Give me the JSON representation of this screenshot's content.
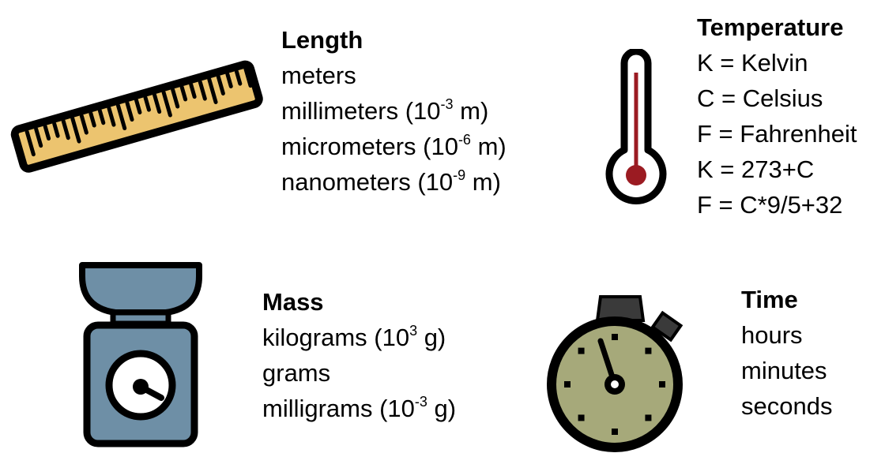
{
  "colors": {
    "outline": "#000000",
    "ruler_fill": "#ecc46f",
    "thermo_bulb": "#9b1b22",
    "scale_fill": "#6e8fa6",
    "stopwatch_face": "#a6a97a",
    "stopwatch_button": "#3a3a3a"
  },
  "icons": {
    "length": "ruler-icon",
    "temperature": "thermometer-icon",
    "mass": "scale-icon",
    "time": "stopwatch-icon"
  },
  "length": {
    "title": "Length",
    "units": [
      {
        "text": "meters",
        "exp": "",
        "suffix": ""
      },
      {
        "text": "millimeters (10",
        "exp": "-3",
        "suffix": " m)"
      },
      {
        "text": "micrometers (10",
        "exp": "-6",
        "suffix": " m)"
      },
      {
        "text": "nanometers (10",
        "exp": "-9",
        "suffix": " m)"
      }
    ]
  },
  "temperature": {
    "title": "Temperature",
    "lines": [
      "K = Kelvin",
      "C = Celsius",
      "F = Fahrenheit",
      "K = 273+C",
      "F = C*9/5+32"
    ]
  },
  "mass": {
    "title": "Mass",
    "units": [
      {
        "text": "kilograms (10",
        "exp": "3",
        "suffix": " g)"
      },
      {
        "text": "grams",
        "exp": "",
        "suffix": ""
      },
      {
        "text": "milligrams (10",
        "exp": "-3",
        "suffix": " g)"
      }
    ]
  },
  "time": {
    "title": "Time",
    "units": [
      "hours",
      "minutes",
      "seconds"
    ]
  }
}
